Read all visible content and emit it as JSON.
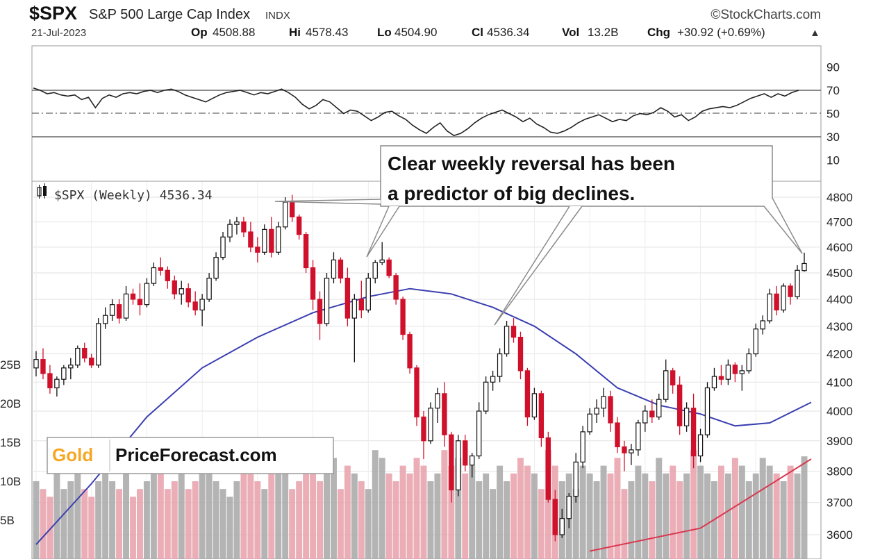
{
  "header": {
    "ticker": "$SPX",
    "name": "S&P 500 Large Cap Index",
    "exchange": "INDX",
    "date": "21-Jul-2023",
    "credit": "©StockCharts.com",
    "stats": [
      {
        "label": "Op",
        "value": "4508.88"
      },
      {
        "label": "Hi",
        "value": "4578.43"
      },
      {
        "label": "Lo",
        "value": "4504.90"
      },
      {
        "label": "Cl",
        "value": "4536.34"
      },
      {
        "label": "Vol",
        "value": "13.2B"
      },
      {
        "label": "Chg",
        "value": "+30.92 (+0.69%)"
      }
    ],
    "chg_arrow": "▲"
  },
  "legend": {
    "icon": "candle-legend-icon",
    "text": "$SPX (Weekly) 4536.34"
  },
  "callout": {
    "line1": "Clear weekly reversal  has been",
    "line2": "a predictor of big declines."
  },
  "logo": {
    "gold": "Gold",
    "rest": "PriceForecast.com"
  },
  "colors": {
    "up": "#ffffff",
    "down": "#d0112b",
    "ma_fast": "#3a3fb0",
    "ma_slow": "#d9384f",
    "vol_up": "#a7a7a7",
    "vol_down": "#e8a0aa",
    "rsi_line": "#222222",
    "gold_text": "#f5a623"
  },
  "chart_data": {
    "type": "candlestick",
    "title": "$SPX (Weekly)",
    "ylim": [
      3550,
      4850
    ],
    "yscale": "log",
    "yticks": [
      3600,
      3700,
      3800,
      3900,
      4000,
      4100,
      4200,
      4300,
      4400,
      4500,
      4600,
      4700,
      4800
    ],
    "rsi_ticks": [
      10,
      30,
      50,
      70,
      90
    ],
    "volume_ticks": [
      "5B",
      "10B",
      "15B",
      "20B",
      "25B"
    ],
    "volume_tick_values": [
      5,
      10,
      15,
      20,
      25
    ],
    "ohlc": [
      [
        4150,
        4210,
        4120,
        4180
      ],
      [
        4180,
        4220,
        4110,
        4130
      ],
      [
        4130,
        4160,
        4060,
        4080
      ],
      [
        4080,
        4120,
        4050,
        4110
      ],
      [
        4110,
        4160,
        4090,
        4150
      ],
      [
        4150,
        4185,
        4110,
        4160
      ],
      [
        4160,
        4230,
        4150,
        4220
      ],
      [
        4220,
        4240,
        4170,
        4185
      ],
      [
        4185,
        4200,
        4150,
        4160
      ],
      [
        4160,
        4330,
        4150,
        4310
      ],
      [
        4310,
        4370,
        4290,
        4340
      ],
      [
        4340,
        4400,
        4320,
        4380
      ],
      [
        4380,
        4400,
        4310,
        4330
      ],
      [
        4330,
        4450,
        4320,
        4420
      ],
      [
        4420,
        4440,
        4380,
        4400
      ],
      [
        4400,
        4460,
        4340,
        4380
      ],
      [
        4380,
        4480,
        4370,
        4460
      ],
      [
        4460,
        4540,
        4450,
        4520
      ],
      [
        4520,
        4560,
        4490,
        4510
      ],
      [
        4510,
        4525,
        4440,
        4470
      ],
      [
        4470,
        4490,
        4400,
        4420
      ],
      [
        4420,
        4470,
        4380,
        4440
      ],
      [
        4440,
        4460,
        4370,
        4390
      ],
      [
        4390,
        4430,
        4340,
        4360
      ],
      [
        4360,
        4420,
        4300,
        4400
      ],
      [
        4400,
        4500,
        4390,
        4480
      ],
      [
        4480,
        4580,
        4470,
        4560
      ],
      [
        4560,
        4660,
        4550,
        4640
      ],
      [
        4640,
        4710,
        4620,
        4690
      ],
      [
        4690,
        4720,
        4650,
        4700
      ],
      [
        4700,
        4720,
        4640,
        4660
      ],
      [
        4660,
        4700,
        4580,
        4600
      ],
      [
        4600,
        4640,
        4540,
        4580
      ],
      [
        4580,
        4690,
        4570,
        4670
      ],
      [
        4670,
        4720,
        4560,
        4580
      ],
      [
        4580,
        4700,
        4570,
        4680
      ],
      [
        4680,
        4800,
        4670,
        4780
      ],
      [
        4780,
        4810,
        4700,
        4720
      ],
      [
        4720,
        4730,
        4630,
        4650
      ],
      [
        4650,
        4660,
        4500,
        4520
      ],
      [
        4520,
        4550,
        4360,
        4400
      ],
      [
        4400,
        4430,
        4250,
        4310
      ],
      [
        4310,
        4500,
        4300,
        4480
      ],
      [
        4480,
        4580,
        4460,
        4550
      ],
      [
        4550,
        4560,
        4460,
        4480
      ],
      [
        4480,
        4520,
        4300,
        4330
      ],
      [
        4330,
        4420,
        4170,
        4400
      ],
      [
        4400,
        4470,
        4330,
        4360
      ],
      [
        4360,
        4500,
        4350,
        4480
      ],
      [
        4480,
        4550,
        4460,
        4540
      ],
      [
        4540,
        4620,
        4530,
        4550
      ],
      [
        4550,
        4560,
        4480,
        4490
      ],
      [
        4490,
        4500,
        4380,
        4400
      ],
      [
        4400,
        4410,
        4250,
        4270
      ],
      [
        4270,
        4280,
        4130,
        4150
      ],
      [
        4150,
        4160,
        3950,
        3980
      ],
      [
        3980,
        4000,
        3840,
        3900
      ],
      [
        3900,
        4030,
        3890,
        4010
      ],
      [
        4010,
        4080,
        3960,
        4060
      ],
      [
        4060,
        4100,
        3880,
        3920
      ],
      [
        3920,
        3930,
        3700,
        3740
      ],
      [
        3740,
        3920,
        3720,
        3900
      ],
      [
        3900,
        3920,
        3800,
        3820
      ],
      [
        3820,
        3860,
        3780,
        3850
      ],
      [
        3850,
        4030,
        3840,
        4000
      ],
      [
        4000,
        4120,
        3990,
        4100
      ],
      [
        4100,
        4140,
        4070,
        4120
      ],
      [
        4120,
        4220,
        4100,
        4200
      ],
      [
        4200,
        4320,
        4190,
        4300
      ],
      [
        4300,
        4330,
        4240,
        4260
      ],
      [
        4260,
        4280,
        4110,
        4140
      ],
      [
        4140,
        4150,
        3950,
        3980
      ],
      [
        3980,
        4080,
        3970,
        4060
      ],
      [
        4060,
        4070,
        3880,
        3910
      ],
      [
        3910,
        3930,
        3700,
        3710
      ],
      [
        3710,
        3740,
        3580,
        3600
      ],
      [
        3600,
        3680,
        3590,
        3650
      ],
      [
        3650,
        3730,
        3620,
        3720
      ],
      [
        3720,
        3860,
        3700,
        3830
      ],
      [
        3830,
        3950,
        3810,
        3930
      ],
      [
        3930,
        4010,
        3920,
        3990
      ],
      [
        3990,
        4040,
        3960,
        4010
      ],
      [
        4010,
        4080,
        3980,
        4050
      ],
      [
        4050,
        4070,
        3930,
        3960
      ],
      [
        3960,
        3980,
        3860,
        3880
      ],
      [
        3880,
        3900,
        3800,
        3860
      ],
      [
        3860,
        3890,
        3820,
        3870
      ],
      [
        3870,
        3970,
        3850,
        3960
      ],
      [
        3960,
        4020,
        3930,
        4000
      ],
      [
        4000,
        4040,
        3960,
        3980
      ],
      [
        3980,
        4060,
        3970,
        4040
      ],
      [
        4040,
        4180,
        4030,
        4140
      ],
      [
        4140,
        4150,
        4060,
        4090
      ],
      [
        4090,
        4120,
        3920,
        3950
      ],
      [
        3950,
        4030,
        3930,
        4010
      ],
      [
        4010,
        4060,
        3810,
        3850
      ],
      [
        3850,
        3940,
        3830,
        3920
      ],
      [
        3920,
        4100,
        3910,
        4080
      ],
      [
        4080,
        4150,
        4070,
        4120
      ],
      [
        4120,
        4160,
        4090,
        4110
      ],
      [
        4110,
        4180,
        4090,
        4160
      ],
      [
        4160,
        4170,
        4100,
        4130
      ],
      [
        4130,
        4160,
        4070,
        4140
      ],
      [
        4140,
        4220,
        4130,
        4200
      ],
      [
        4200,
        4310,
        4190,
        4290
      ],
      [
        4290,
        4340,
        4270,
        4320
      ],
      [
        4320,
        4440,
        4310,
        4420
      ],
      [
        4420,
        4450,
        4340,
        4360
      ],
      [
        4360,
        4460,
        4350,
        4450
      ],
      [
        4450,
        4460,
        4380,
        4410
      ],
      [
        4410,
        4530,
        4400,
        4510
      ],
      [
        4508.88,
        4578.43,
        4504.9,
        4536.34
      ]
    ],
    "ma_fast": [
      [
        0,
        3570
      ],
      [
        8,
        3760
      ],
      [
        16,
        3980
      ],
      [
        24,
        4150
      ],
      [
        32,
        4260
      ],
      [
        40,
        4350
      ],
      [
        48,
        4410
      ],
      [
        54,
        4440
      ],
      [
        60,
        4420
      ],
      [
        66,
        4370
      ],
      [
        72,
        4300
      ],
      [
        78,
        4200
      ],
      [
        84,
        4080
      ],
      [
        90,
        4020
      ],
      [
        96,
        3990
      ],
      [
        101,
        3950
      ],
      [
        106,
        3960
      ],
      [
        112,
        4030
      ]
    ],
    "ma_slow": [
      [
        80,
        3550
      ],
      [
        96,
        3620
      ],
      [
        112,
        3840
      ]
    ],
    "volume_bil": [
      10,
      9,
      8,
      11,
      9,
      10,
      12,
      9,
      8,
      10,
      11,
      10,
      9,
      11,
      8,
      9,
      10,
      12,
      11,
      9,
      10,
      11,
      9,
      10,
      12,
      11,
      10,
      9,
      8,
      10,
      14,
      11,
      10,
      9,
      12,
      13,
      11,
      9,
      10,
      12,
      15,
      10,
      11,
      13,
      9,
      12,
      11,
      10,
      9,
      14,
      13,
      11,
      10,
      12,
      11,
      13,
      12,
      10,
      11,
      14,
      12,
      13,
      11,
      12,
      10,
      11,
      9,
      12,
      10,
      11,
      13,
      12,
      11,
      9,
      14,
      12,
      10,
      11,
      9,
      12,
      11,
      10,
      12,
      11,
      13,
      9,
      10,
      12,
      11,
      10,
      13,
      11,
      12,
      10,
      11,
      14,
      12,
      11,
      10,
      12,
      11,
      13,
      12,
      10,
      11,
      13,
      12,
      11,
      10,
      12,
      11,
      13.2
    ],
    "rsi": [
      72,
      70,
      67,
      68,
      66,
      65,
      66,
      62,
      64,
      55,
      63,
      66,
      64,
      67,
      68,
      67,
      69,
      70,
      68,
      70,
      71,
      69,
      66,
      64,
      62,
      60,
      63,
      66,
      68,
      69,
      70,
      68,
      66,
      68,
      67,
      69,
      71,
      68,
      64,
      58,
      54,
      57,
      62,
      60,
      55,
      50,
      53,
      52,
      48,
      44,
      47,
      51,
      52,
      48,
      45,
      40,
      36,
      33,
      38,
      42,
      35,
      31,
      33,
      37,
      42,
      46,
      49,
      51,
      53,
      50,
      47,
      43,
      46,
      41,
      38,
      34,
      33,
      35,
      38,
      42,
      45,
      47,
      49,
      46,
      43,
      45,
      44,
      48,
      50,
      49,
      51,
      55,
      52,
      47,
      49,
      44,
      47,
      52,
      54,
      55,
      56,
      55,
      57,
      60,
      63,
      65,
      67,
      64,
      67,
      65,
      68,
      70
    ]
  }
}
